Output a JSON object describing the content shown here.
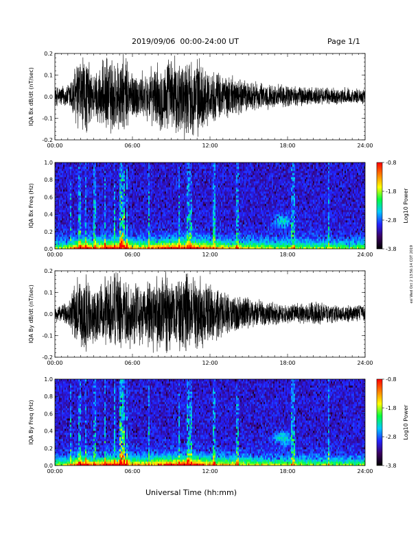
{
  "header": {
    "title": "2019/09/06  00:00-24:00 UT",
    "page": "Page 1/1",
    "stamp": "esl Wed Oct 2 13:56:14 CDT 2019"
  },
  "xaxis_title": "Universal Time (hh:mm)",
  "colors": {
    "trace": "#000000",
    "colormap": [
      "#000000",
      "#3a0060",
      "#2222ff",
      "#00c8ff",
      "#00ff40",
      "#ffff00",
      "#ff8000",
      "#ff0000"
    ]
  },
  "chart_data": [
    {
      "type": "line",
      "panel": "bx-time-series",
      "ylabel": "IQA Bx dB/dt (nT/sec)",
      "xlim": [
        0,
        24
      ],
      "ylim": [
        -0.2,
        0.2
      ],
      "x_ticks": [
        "00:00",
        "06:00",
        "12:00",
        "18:00",
        "24:00"
      ],
      "y_ticks": [
        "-0.2",
        "-0.1",
        "0.0",
        "0.1",
        "0.2"
      ],
      "envelope_hours": [
        0,
        1,
        1.8,
        2.5,
        3,
        4,
        5,
        5.5,
        6,
        7,
        8,
        9,
        10,
        11,
        12,
        13,
        14,
        15,
        16,
        17,
        18,
        19,
        20,
        21,
        22,
        23,
        24
      ],
      "envelope_amplitude": [
        0.05,
        0.06,
        0.2,
        0.2,
        0.12,
        0.2,
        0.2,
        0.2,
        0.13,
        0.12,
        0.17,
        0.2,
        0.2,
        0.2,
        0.13,
        0.12,
        0.1,
        0.08,
        0.07,
        0.06,
        0.06,
        0.05,
        0.05,
        0.045,
        0.045,
        0.04,
        0.04
      ]
    },
    {
      "type": "heatmap",
      "panel": "bx-spectrogram",
      "ylabel": "IQA Bx Freq (Hz)",
      "xlim": [
        0,
        24
      ],
      "ylim": [
        0,
        1.0
      ],
      "x_ticks": [
        "00:00",
        "06:00",
        "12:00",
        "18:00",
        "24:00"
      ],
      "y_ticks": [
        "0.0",
        "0.2",
        "0.4",
        "0.6",
        "0.8",
        "1.0"
      ],
      "colorbar_label": "Log10 Power",
      "colorbar_ticks": [
        "-0.8",
        "-1.8",
        "-2.8",
        "-3.8"
      ],
      "zlim": [
        -3.8,
        -0.8
      ]
    },
    {
      "type": "line",
      "panel": "by-time-series",
      "ylabel": "IQA By dB/dt (nT/sec)",
      "xlim": [
        0,
        24
      ],
      "ylim": [
        -0.2,
        0.2
      ],
      "x_ticks": [
        "00:00",
        "06:00",
        "12:00",
        "18:00",
        "24:00"
      ],
      "y_ticks": [
        "-0.2",
        "-0.1",
        "0.0",
        "0.1",
        "0.2"
      ],
      "envelope_hours": [
        0,
        1,
        1.8,
        2.5,
        3,
        4,
        5,
        5.5,
        6,
        7,
        8,
        9,
        10,
        11,
        12,
        13,
        14,
        15,
        16,
        17,
        18,
        19,
        20,
        21,
        22,
        23,
        24
      ],
      "envelope_amplitude": [
        0.04,
        0.05,
        0.2,
        0.2,
        0.14,
        0.2,
        0.2,
        0.2,
        0.15,
        0.16,
        0.2,
        0.2,
        0.2,
        0.2,
        0.16,
        0.12,
        0.1,
        0.08,
        0.07,
        0.06,
        0.05,
        0.05,
        0.06,
        0.05,
        0.045,
        0.04,
        0.04
      ]
    },
    {
      "type": "heatmap",
      "panel": "by-spectrogram",
      "ylabel": "IQA By Freq (Hz)",
      "xlim": [
        0,
        24
      ],
      "ylim": [
        0,
        1.0
      ],
      "x_ticks": [
        "00:00",
        "06:00",
        "12:00",
        "18:00",
        "24:00"
      ],
      "y_ticks": [
        "0.0",
        "0.2",
        "0.4",
        "0.6",
        "0.8",
        "1.0"
      ],
      "colorbar_label": "Log10 Power",
      "colorbar_ticks": [
        "-0.8",
        "-1.8",
        "-2.8",
        "-3.8"
      ],
      "zlim": [
        -3.8,
        -0.8
      ]
    }
  ]
}
